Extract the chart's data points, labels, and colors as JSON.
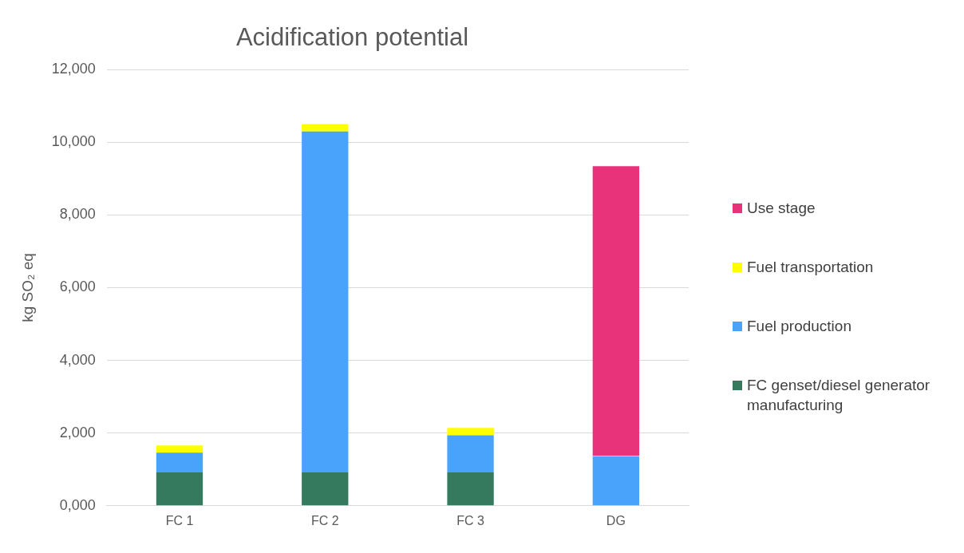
{
  "chart_data": {
    "type": "bar",
    "title": "Acidification potential",
    "ylabel": "kg SO₂ eq",
    "categories": [
      "FC 1",
      "FC 2",
      "FC 3",
      "DG"
    ],
    "stacked": true,
    "series": [
      {
        "name": "FC genset/diesel generator manufacturing",
        "color": "#357a5e",
        "values": [
          920,
          920,
          920,
          0
        ]
      },
      {
        "name": "Fuel production",
        "color": "#4aa3fb",
        "values": [
          540,
          9380,
          1020,
          1360
        ]
      },
      {
        "name": "Fuel transportation",
        "color": "#ffff00",
        "values": [
          200,
          200,
          200,
          20
        ]
      },
      {
        "name": "Use stage",
        "color": "#e8337a",
        "values": [
          0,
          0,
          0,
          7960
        ]
      }
    ],
    "ylim": [
      0,
      12000
    ],
    "yticks": [
      {
        "value": 0,
        "label": "0,000"
      },
      {
        "value": 2000,
        "label": "2,000"
      },
      {
        "value": 4000,
        "label": "4,000"
      },
      {
        "value": 6000,
        "label": "6,000"
      },
      {
        "value": 8000,
        "label": "8,000"
      },
      {
        "value": 10000,
        "label": "10,000"
      },
      {
        "value": 12000,
        "label": "12,000"
      }
    ],
    "grid": "y",
    "legend": "right"
  }
}
